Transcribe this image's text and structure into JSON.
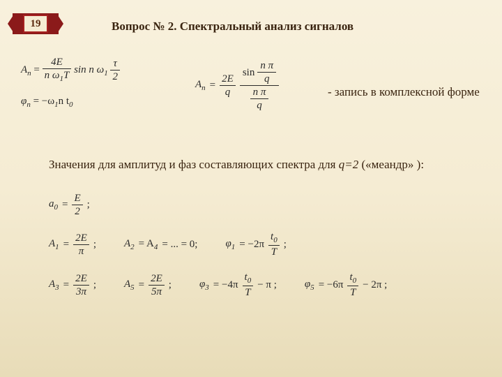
{
  "badge": {
    "number": "19"
  },
  "title": "Вопрос № 2. Спектральный анализ сигналов",
  "formulas": {
    "An_time": {
      "lhs": "A",
      "lhs_sub": "n",
      "eq": "=",
      "frac1_num": "4E",
      "frac1_den_a": "n ω",
      "frac1_den_sub": "1",
      "frac1_den_b": "T",
      "mid": "sin n ω",
      "mid_sub": "1",
      "frac2_num": "τ",
      "frac2_den": "2"
    },
    "phi": {
      "lhs": "φ",
      "lhs_sub": "n",
      "eq": "= −ω",
      "sub1": "1",
      "rest": "n t",
      "sub0": "0"
    },
    "An_sinc": {
      "lhs": "A",
      "lhs_sub": "n",
      "eq": "=",
      "frac_outer_num": "2E",
      "frac_outer_den": "q",
      "sin_label": "sin",
      "inner_num_a": "n π",
      "inner_num_den": "q",
      "inner_den_a": "n π",
      "inner_den_den": "q"
    },
    "annotation": "-  запись в комплексной форме",
    "subtext_prefix": "Значения для амплитуд и фаз составляющих спектра для ",
    "subtext_q": "q=2",
    "subtext_suffix": " («меандр» ):",
    "a0": {
      "lhs": "a",
      "sub": "0",
      "eq": "=",
      "num": "E",
      "den": "2",
      "end": ";"
    },
    "row2": {
      "A1_lhs": "A",
      "A1_sub": "1",
      "A1_eq": "=",
      "A1_num": "2E",
      "A1_den": "π",
      "A1_end": ";",
      "A24": "A",
      "A2_sub": "2",
      "eq2": "= A",
      "A4_sub": "4",
      "rest24": "= ... = 0;",
      "phi1_lhs": "φ",
      "phi1_sub": "1",
      "phi1_eq": "= −2π",
      "phi1_num": "t",
      "phi1_num_sub": "0",
      "phi1_den": "T",
      "phi1_end": ";"
    },
    "row3": {
      "A3_lhs": "A",
      "A3_sub": "3",
      "A3_eq": "=",
      "A3_num": "2E",
      "A3_den": "3π",
      "A3_end": ";",
      "A5_lhs": "A",
      "A5_sub": "5",
      "A5_eq": "=",
      "A5_num": "2E",
      "A5_den": "5π",
      "A5_end": ";",
      "phi3_lhs": "φ",
      "phi3_sub": "3",
      "phi3_eq": "= −4π",
      "phi3_num": "t",
      "phi3_num_sub": "0",
      "phi3_den": "T",
      "phi3_mid": "− π ;",
      "phi5_lhs": "φ",
      "phi5_sub": "5",
      "phi5_eq": "= −6π",
      "phi5_num": "t",
      "phi5_num_sub": "0",
      "phi5_den": "T",
      "phi5_mid": "− 2π ;"
    }
  },
  "colors": {
    "text": "#3a2410",
    "formula": "#2a2a2a",
    "badge_ribbon": "#8b1a1a",
    "badge_border": "#a52020",
    "bg_top": "#f8f1dd",
    "bg_bottom": "#e8dcb8"
  },
  "fonts": {
    "title_size_pt": 13,
    "body_size_pt": 13,
    "formula_size_pt": 12,
    "family": "Times New Roman / Georgia serif"
  }
}
